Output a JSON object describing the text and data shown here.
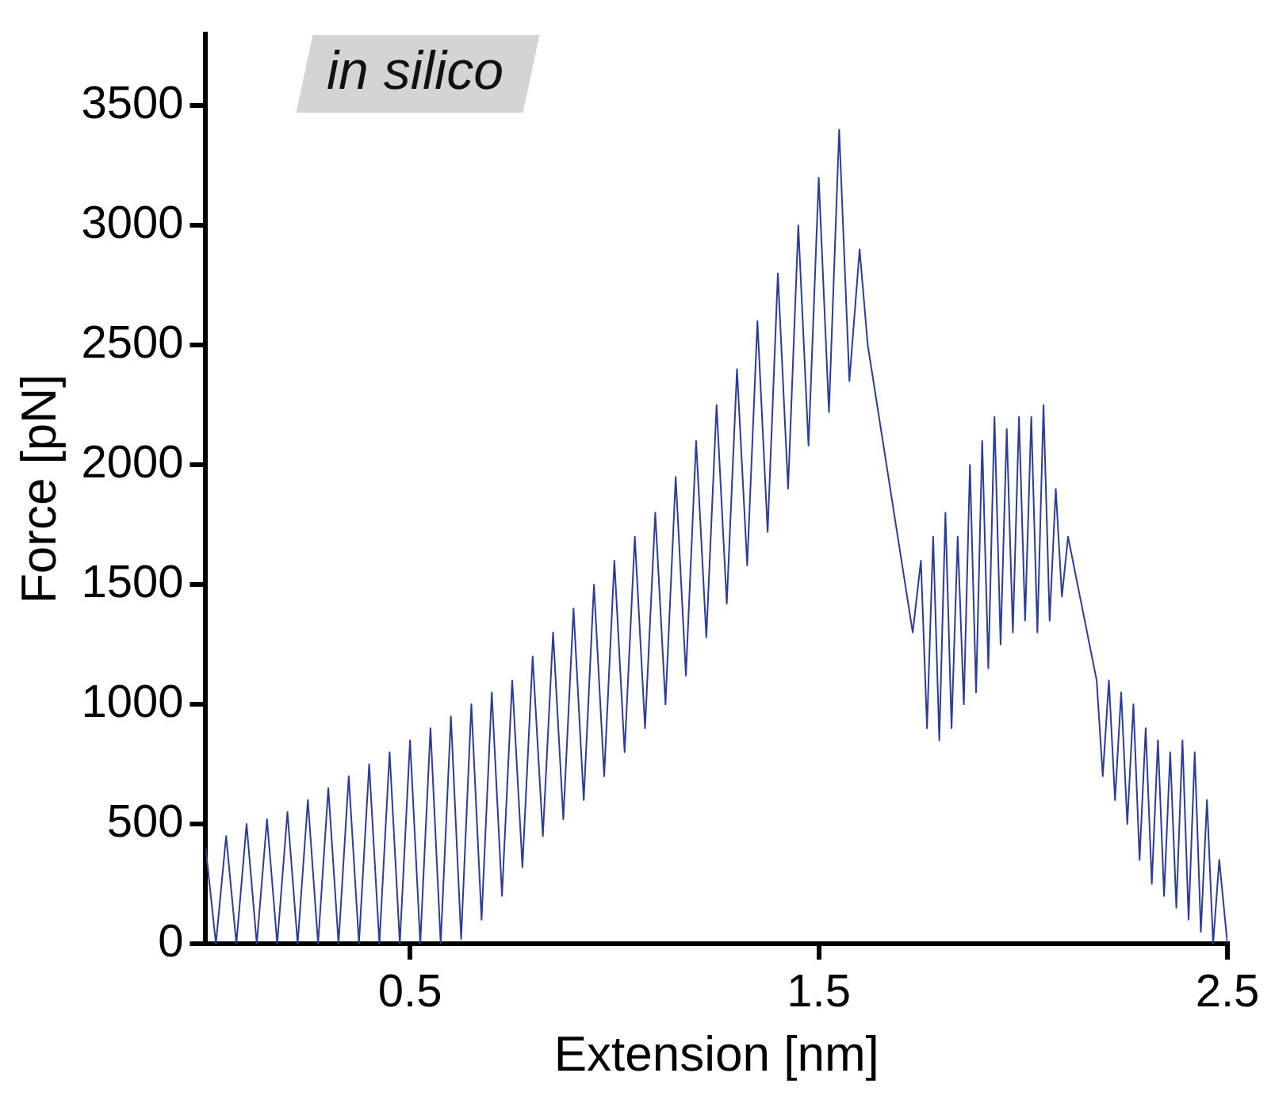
{
  "chart_data": {
    "type": "line",
    "xlabel": "Extension [nm]",
    "ylabel": "Force [pN]",
    "annotations": [
      "in silico"
    ],
    "xlim": [
      0,
      2.5
    ],
    "xticks": [
      0.5,
      1.5,
      2.5
    ],
    "ylim": [
      0,
      3800
    ],
    "yticks": [
      0,
      500,
      1000,
      1500,
      2000,
      2500,
      3000,
      3500
    ],
    "marker": "none",
    "line_style": "solid",
    "series": [
      {
        "color": "#2b3d99",
        "x": [
          0,
          0.025,
          0.05,
          0.075,
          0.1,
          0.125,
          0.15,
          0.175,
          0.2,
          0.225,
          0.25,
          0.275,
          0.3,
          0.325,
          0.35,
          0.375,
          0.4,
          0.425,
          0.45,
          0.475,
          0.5,
          0.525,
          0.55,
          0.575,
          0.6,
          0.625,
          0.65,
          0.675,
          0.7,
          0.725,
          0.75,
          0.775,
          0.8,
          0.825,
          0.85,
          0.875,
          0.9,
          0.925,
          0.95,
          0.975,
          1.0,
          1.025,
          1.05,
          1.075,
          1.1,
          1.125,
          1.15,
          1.175,
          1.2,
          1.225,
          1.25,
          1.275,
          1.3,
          1.325,
          1.35,
          1.375,
          1.4,
          1.425,
          1.45,
          1.475,
          1.5,
          1.525,
          1.55,
          1.575,
          1.6,
          1.62,
          1.73,
          1.75,
          1.765,
          1.78,
          1.795,
          1.81,
          1.825,
          1.84,
          1.855,
          1.87,
          1.885,
          1.9,
          1.915,
          1.93,
          1.945,
          1.96,
          1.975,
          1.99,
          2.005,
          2.02,
          2.035,
          2.05,
          2.065,
          2.08,
          2.095,
          2.11,
          2.18,
          2.195,
          2.21,
          2.225,
          2.24,
          2.255,
          2.27,
          2.285,
          2.3,
          2.315,
          2.33,
          2.345,
          2.36,
          2.375,
          2.39,
          2.405,
          2.42,
          2.435,
          2.45,
          2.465,
          2.48,
          2.5
        ],
        "values": [
          400,
          0,
          450,
          0,
          500,
          0,
          520,
          0,
          550,
          0,
          600,
          0,
          650,
          0,
          700,
          0,
          750,
          0,
          800,
          0,
          850,
          0,
          900,
          0,
          950,
          20,
          1000,
          100,
          1050,
          200,
          1100,
          320,
          1200,
          450,
          1300,
          520,
          1400,
          600,
          1500,
          700,
          1600,
          800,
          1700,
          900,
          1800,
          1000,
          1950,
          1120,
          2100,
          1280,
          2250,
          1420,
          2400,
          1580,
          2600,
          1720,
          2800,
          1900,
          3000,
          2080,
          3200,
          2220,
          3400,
          2350,
          2900,
          2500,
          1300,
          1600,
          900,
          1700,
          850,
          1800,
          900,
          1700,
          1000,
          2000,
          1050,
          2100,
          1150,
          2200,
          1250,
          2150,
          1300,
          2200,
          1350,
          2200,
          1300,
          2250,
          1350,
          1900,
          1450,
          1700,
          1100,
          700,
          1100,
          600,
          1050,
          500,
          1000,
          350,
          900,
          250,
          850,
          200,
          800,
          150,
          850,
          100,
          800,
          50,
          600,
          0,
          350,
          0
        ]
      }
    ]
  }
}
